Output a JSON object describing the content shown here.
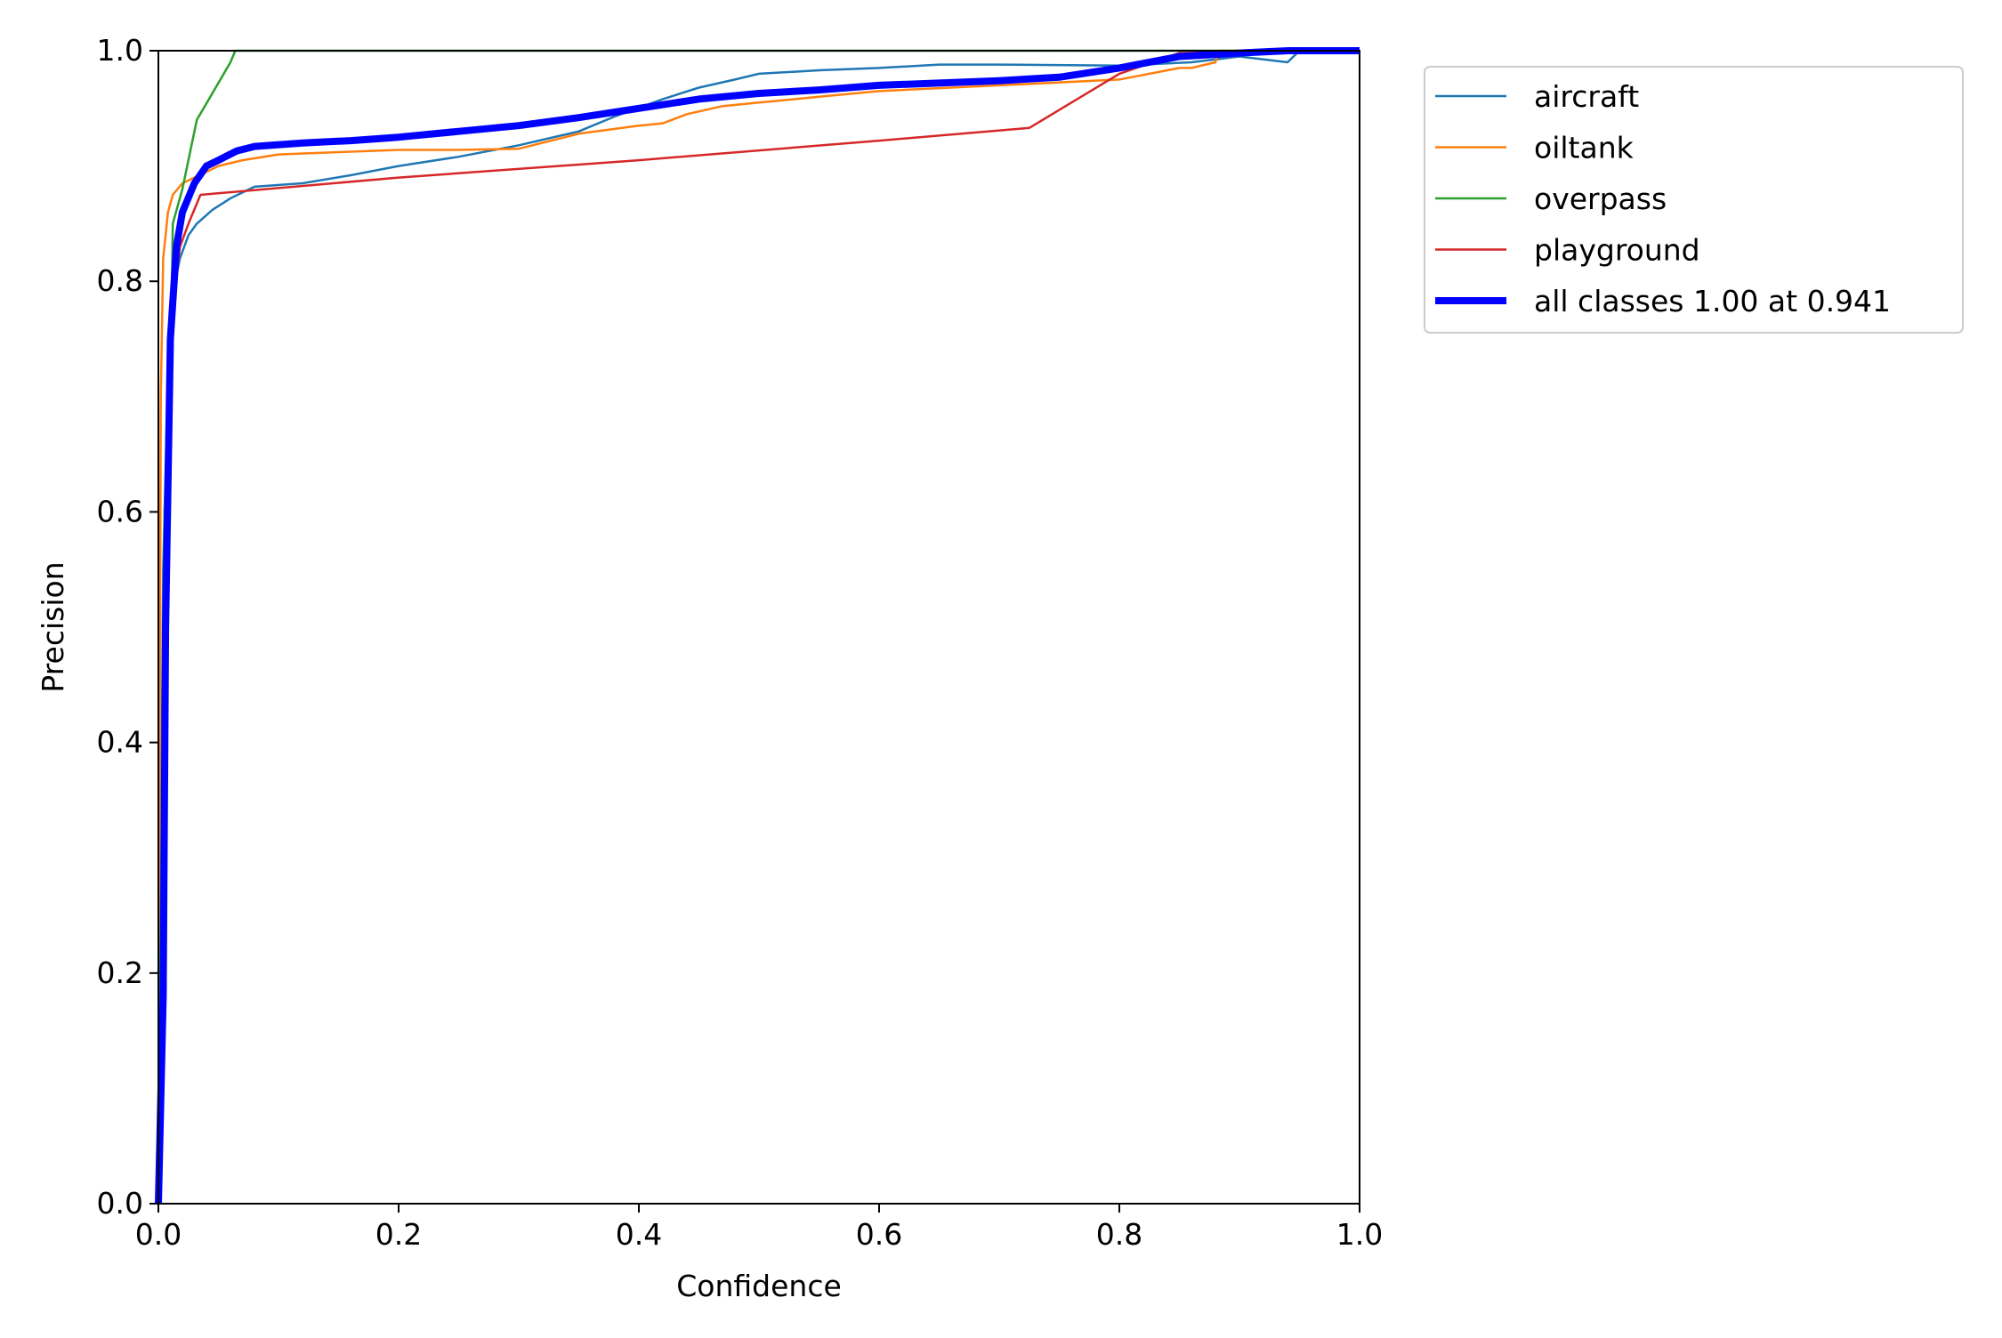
{
  "chart_data": {
    "type": "line",
    "title": "",
    "xlabel": "Confidence",
    "ylabel": "Precision",
    "xlim": [
      0.0,
      1.0
    ],
    "ylim": [
      0.0,
      1.0
    ],
    "xticks": [
      "0.0",
      "0.2",
      "0.4",
      "0.6",
      "0.8",
      "1.0"
    ],
    "yticks": [
      "0.0",
      "0.2",
      "0.4",
      "0.6",
      "0.8",
      "1.0"
    ],
    "grid": false,
    "legend_position": "outside-top-right",
    "series": [
      {
        "name": "aircraft",
        "color": "#1f77b4",
        "emphasis": false,
        "points": [
          [
            0.0,
            0.0
          ],
          [
            0.004,
            0.55
          ],
          [
            0.008,
            0.72
          ],
          [
            0.012,
            0.79
          ],
          [
            0.018,
            0.82
          ],
          [
            0.025,
            0.84
          ],
          [
            0.032,
            0.85
          ],
          [
            0.045,
            0.862
          ],
          [
            0.06,
            0.872
          ],
          [
            0.08,
            0.882
          ],
          [
            0.12,
            0.885
          ],
          [
            0.16,
            0.892
          ],
          [
            0.2,
            0.9
          ],
          [
            0.25,
            0.908
          ],
          [
            0.3,
            0.918
          ],
          [
            0.35,
            0.93
          ],
          [
            0.38,
            0.943
          ],
          [
            0.42,
            0.958
          ],
          [
            0.45,
            0.968
          ],
          [
            0.48,
            0.975
          ],
          [
            0.5,
            0.98
          ],
          [
            0.55,
            0.983
          ],
          [
            0.6,
            0.985
          ],
          [
            0.65,
            0.988
          ],
          [
            0.7,
            0.988
          ],
          [
            0.8,
            0.987
          ],
          [
            0.86,
            0.99
          ],
          [
            0.9,
            0.995
          ],
          [
            0.94,
            0.99
          ],
          [
            0.95,
            1.0
          ],
          [
            1.0,
            1.0
          ]
        ]
      },
      {
        "name": "oiltank",
        "color": "#ff7f0e",
        "emphasis": false,
        "points": [
          [
            0.0,
            0.0
          ],
          [
            0.002,
            0.7
          ],
          [
            0.004,
            0.82
          ],
          [
            0.008,
            0.86
          ],
          [
            0.012,
            0.875
          ],
          [
            0.02,
            0.885
          ],
          [
            0.03,
            0.89
          ],
          [
            0.05,
            0.9
          ],
          [
            0.07,
            0.905
          ],
          [
            0.1,
            0.91
          ],
          [
            0.15,
            0.912
          ],
          [
            0.2,
            0.914
          ],
          [
            0.25,
            0.914
          ],
          [
            0.3,
            0.915
          ],
          [
            0.35,
            0.928
          ],
          [
            0.4,
            0.935
          ],
          [
            0.42,
            0.937
          ],
          [
            0.44,
            0.945
          ],
          [
            0.47,
            0.952
          ],
          [
            0.5,
            0.955
          ],
          [
            0.55,
            0.96
          ],
          [
            0.6,
            0.965
          ],
          [
            0.7,
            0.97
          ],
          [
            0.8,
            0.975
          ],
          [
            0.85,
            0.985
          ],
          [
            0.86,
            0.985
          ],
          [
            0.88,
            0.99
          ],
          [
            0.883,
            1.0
          ],
          [
            1.0,
            1.0
          ]
        ]
      },
      {
        "name": "overpass",
        "color": "#2ca02c",
        "emphasis": false,
        "points": [
          [
            0.0,
            0.0
          ],
          [
            0.005,
            0.6
          ],
          [
            0.01,
            0.7
          ],
          [
            0.012,
            0.85
          ],
          [
            0.02,
            0.88
          ],
          [
            0.032,
            0.94
          ],
          [
            0.06,
            0.99
          ],
          [
            0.064,
            1.0
          ],
          [
            1.0,
            1.0
          ]
        ]
      },
      {
        "name": "playground",
        "color": "#d62728",
        "emphasis": false,
        "points": [
          [
            0.0,
            0.0
          ],
          [
            0.002,
            0.1
          ],
          [
            0.004,
            0.4
          ],
          [
            0.008,
            0.65
          ],
          [
            0.012,
            0.78
          ],
          [
            0.018,
            0.83
          ],
          [
            0.025,
            0.85
          ],
          [
            0.035,
            0.875
          ],
          [
            0.2,
            0.89
          ],
          [
            0.4,
            0.905
          ],
          [
            0.6,
            0.922
          ],
          [
            0.725,
            0.933
          ],
          [
            0.8,
            0.98
          ],
          [
            0.85,
            0.998
          ],
          [
            1.0,
            1.0
          ]
        ]
      },
      {
        "name": "all classes 1.00 at 0.941",
        "color": "#0000ff",
        "emphasis": true,
        "points": [
          [
            0.0,
            0.0
          ],
          [
            0.004,
            0.18
          ],
          [
            0.006,
            0.5
          ],
          [
            0.01,
            0.75
          ],
          [
            0.015,
            0.83
          ],
          [
            0.02,
            0.86
          ],
          [
            0.03,
            0.885
          ],
          [
            0.04,
            0.9
          ],
          [
            0.05,
            0.905
          ],
          [
            0.065,
            0.913
          ],
          [
            0.08,
            0.917
          ],
          [
            0.12,
            0.92
          ],
          [
            0.16,
            0.922
          ],
          [
            0.2,
            0.925
          ],
          [
            0.25,
            0.93
          ],
          [
            0.3,
            0.935
          ],
          [
            0.35,
            0.942
          ],
          [
            0.4,
            0.95
          ],
          [
            0.45,
            0.958
          ],
          [
            0.5,
            0.963
          ],
          [
            0.55,
            0.966
          ],
          [
            0.6,
            0.97
          ],
          [
            0.7,
            0.974
          ],
          [
            0.75,
            0.977
          ],
          [
            0.8,
            0.985
          ],
          [
            0.85,
            0.995
          ],
          [
            0.9,
            0.998
          ],
          [
            0.941,
            1.0
          ],
          [
            1.0,
            1.0
          ]
        ]
      }
    ]
  }
}
